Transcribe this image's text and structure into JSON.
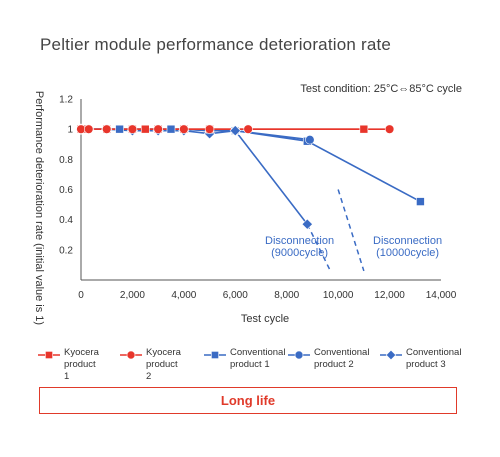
{
  "title": "Peltier module performance deterioration rate",
  "banner": "Long life",
  "colors": {
    "kyocera": "#e8352b",
    "conventional": "#3a6bc4"
  },
  "chart_data": {
    "type": "line",
    "title": "Peltier module performance deterioration rate",
    "xlabel": "Test cycle",
    "ylabel": "Performance deterioration rate (initial value is 1)",
    "xlim": [
      0,
      14000
    ],
    "ylim": [
      0,
      1.2
    ],
    "xticks": [
      0,
      2000,
      4000,
      6000,
      8000,
      10000,
      12000,
      14000
    ],
    "xtick_labels": [
      "0",
      "2,000",
      "4,000",
      "6,000",
      "8,000",
      "10,000",
      "12,000",
      "14,000"
    ],
    "yticks": [
      0.2,
      0.4,
      0.6,
      0.8,
      1,
      1.2
    ],
    "ytick_labels": [
      "0.2",
      "0.4",
      "0.6",
      "0.8",
      "1",
      "1.2"
    ],
    "grid": false,
    "note": "Test condition: 25°C⇔85°C cycle",
    "series": [
      {
        "name": "Kyocera\nproduct 1",
        "marker": "square",
        "color": "#e8352b",
        "x": [
          0,
          200,
          1000,
          2000,
          2500,
          3000,
          4000,
          5000,
          11000
        ],
        "y": [
          1,
          1,
          1,
          1,
          1,
          1,
          1,
          1,
          1
        ]
      },
      {
        "name": "Kyocera\nproduct 2",
        "marker": "circle",
        "color": "#e8352b",
        "x": [
          0,
          300,
          1000,
          2000,
          3000,
          4000,
          5000,
          6500,
          12000
        ],
        "y": [
          1,
          1,
          1,
          1,
          1,
          1,
          1,
          1,
          1
        ]
      },
      {
        "name": "Conventional\nproduct  1",
        "marker": "square",
        "color": "#3a6bc4",
        "x": [
          0,
          200,
          1000,
          1500,
          2000,
          2500,
          3000,
          3500,
          4000,
          5000,
          6000,
          8800,
          13200
        ],
        "y": [
          1,
          1,
          1,
          1,
          1,
          1,
          1,
          1,
          1,
          0.99,
          0.99,
          0.92,
          0.52
        ]
      },
      {
        "name": "Conventional\nproduct 2",
        "marker": "circle",
        "color": "#3a6bc4",
        "x": [
          0,
          300,
          1000,
          2000,
          3000,
          4000,
          5000,
          6000,
          8900
        ],
        "y": [
          1,
          1,
          1,
          1,
          1,
          1,
          0.99,
          0.99,
          0.93
        ]
      },
      {
        "name": "Conventional\nproduct 3",
        "marker": "diamond",
        "color": "#3a6bc4",
        "x": [
          0,
          300,
          1000,
          2000,
          3000,
          4000,
          5000,
          6000,
          8800
        ],
        "y": [
          1,
          1,
          1,
          0.99,
          0.99,
          0.99,
          0.97,
          0.99,
          0.37
        ]
      }
    ],
    "dashed_extensions": [
      {
        "x": [
          8800,
          9700
        ],
        "y": [
          0.37,
          0.06
        ]
      },
      {
        "x": [
          10000,
          11000
        ],
        "y": [
          0.6,
          0.06
        ]
      }
    ],
    "annotations": [
      {
        "text": "Disconnection",
        "x": 8500,
        "y": 0.24
      },
      {
        "text": "(9000cycle)",
        "x": 8500,
        "y": 0.16
      },
      {
        "text": "Disconnection",
        "x": 12700,
        "y": 0.24
      },
      {
        "text": "(10000cycle)",
        "x": 12700,
        "y": 0.16
      }
    ]
  }
}
